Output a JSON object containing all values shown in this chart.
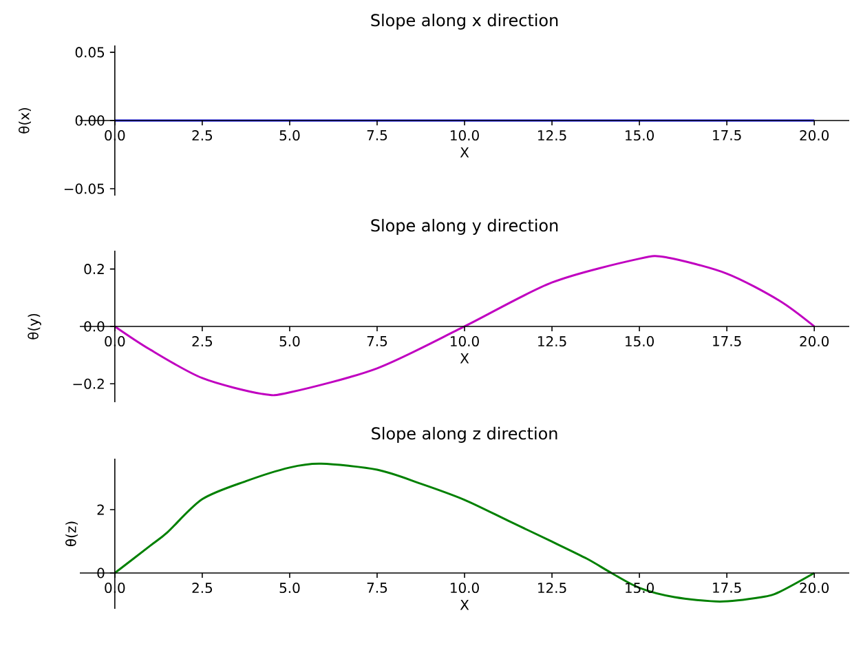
{
  "chart_data": [
    {
      "type": "line",
      "title": "Slope along x direction",
      "xlabel": "X",
      "ylabel": "θ(x)",
      "color": "#0000ff",
      "x": [
        0,
        5,
        10,
        15,
        20
      ],
      "values": [
        0,
        0,
        0,
        0,
        0
      ],
      "xlim": [
        -1,
        21
      ],
      "ylim": [
        -0.055,
        0.055
      ],
      "xticks": [
        {
          "value": 0,
          "label": "0.0"
        },
        {
          "value": 2.5,
          "label": "2.5"
        },
        {
          "value": 5,
          "label": "5.0"
        },
        {
          "value": 7.5,
          "label": "7.5"
        },
        {
          "value": 10,
          "label": "10.0"
        },
        {
          "value": 12.5,
          "label": "12.5"
        },
        {
          "value": 15,
          "label": "15.0"
        },
        {
          "value": 17.5,
          "label": "17.5"
        },
        {
          "value": 20,
          "label": "20.0"
        }
      ],
      "yticks": [
        {
          "value": -0.05,
          "label": "−0.05"
        },
        {
          "value": 0,
          "label": "0.00"
        },
        {
          "value": 0.05,
          "label": "0.05"
        }
      ]
    },
    {
      "type": "line",
      "title": "Slope along y direction",
      "xlabel": "X",
      "ylabel": "θ(y)",
      "color": "#c000c0",
      "x": [
        0,
        1,
        2.5,
        4.2,
        5,
        7.5,
        10,
        12.5,
        15,
        15.8,
        17.5,
        19,
        20
      ],
      "values": [
        0,
        -0.08,
        -0.18,
        -0.235,
        -0.23,
        -0.146,
        0,
        0.153,
        0.236,
        0.24,
        0.184,
        0.09,
        0
      ],
      "xlim": [
        -1,
        21
      ],
      "ylim": [
        -0.264,
        0.264
      ],
      "xticks": [
        {
          "value": 0,
          "label": "0.0"
        },
        {
          "value": 2.5,
          "label": "2.5"
        },
        {
          "value": 5,
          "label": "5.0"
        },
        {
          "value": 7.5,
          "label": "7.5"
        },
        {
          "value": 10,
          "label": "10.0"
        },
        {
          "value": 12.5,
          "label": "12.5"
        },
        {
          "value": 15,
          "label": "15.0"
        },
        {
          "value": 17.5,
          "label": "17.5"
        },
        {
          "value": 20,
          "label": "20.0"
        }
      ],
      "yticks": [
        {
          "value": -0.2,
          "label": "−0.2"
        },
        {
          "value": 0,
          "label": "0.0"
        },
        {
          "value": 0.2,
          "label": "0.2"
        }
      ]
    },
    {
      "type": "line",
      "title": "Slope along z direction",
      "xlabel": "X",
      "ylabel": "θ(z)",
      "color": "#008000",
      "x": [
        0,
        1,
        1.5,
        2.5,
        3.75,
        5,
        5.9,
        7.5,
        8.75,
        10,
        11.25,
        12.5,
        13.5,
        14.2,
        15,
        16,
        17.3,
        18.5,
        19,
        20
      ],
      "values": [
        0,
        0.85,
        1.28,
        2.33,
        2.9,
        3.33,
        3.45,
        3.26,
        2.82,
        2.31,
        1.65,
        0.99,
        0.45,
        0,
        -0.47,
        -0.76,
        -0.9,
        -0.76,
        -0.6,
        0
      ],
      "xlim": [
        -1,
        21
      ],
      "ylim": [
        -1.13,
        3.61
      ],
      "xticks": [
        {
          "value": 0,
          "label": "0.0"
        },
        {
          "value": 2.5,
          "label": "2.5"
        },
        {
          "value": 5,
          "label": "5.0"
        },
        {
          "value": 7.5,
          "label": "7.5"
        },
        {
          "value": 10,
          "label": "10.0"
        },
        {
          "value": 12.5,
          "label": "12.5"
        },
        {
          "value": 15,
          "label": "15.0"
        },
        {
          "value": 17.5,
          "label": "17.5"
        },
        {
          "value": 20,
          "label": "20.0"
        }
      ],
      "yticks": [
        0,
        2
      ]
    }
  ]
}
